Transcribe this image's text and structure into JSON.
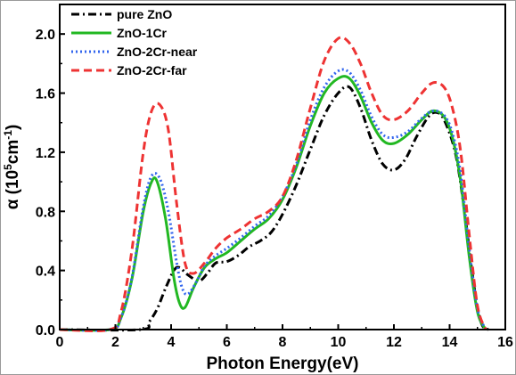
{
  "chart_data": {
    "type": "line",
    "xlabel": "Photon Energy(eV)",
    "ylabel": {
      "main": "α (10",
      "exp": "5",
      "unit": "cm",
      "unit_exp": "-1",
      "close": ")"
    },
    "xlim": [
      0,
      16
    ],
    "ylim": [
      0,
      2.2
    ],
    "x_ticks": [
      0,
      2,
      4,
      6,
      8,
      10,
      12,
      14,
      16
    ],
    "x_tick_labels": [
      "0",
      "2",
      "4",
      "6",
      "8",
      "10",
      "12",
      "14",
      "16"
    ],
    "y_ticks": [
      0.0,
      0.4,
      0.8,
      1.2,
      1.6,
      2.0
    ],
    "y_tick_labels": [
      "0.0",
      "0.4",
      "0.8",
      "1.2",
      "1.6",
      "2.0"
    ],
    "grid": false,
    "legend_position": "top-left",
    "series": [
      {
        "name": "pure ZnO",
        "color": "#000000",
        "dash": "dashdot",
        "x": [
          0,
          2.9,
          3.2,
          3.5,
          3.8,
          4.1,
          4.3,
          4.6,
          5.0,
          5.3,
          5.6,
          6.0,
          6.4,
          6.8,
          7.2,
          7.6,
          8.0,
          8.5,
          9.0,
          9.5,
          10.0,
          10.4,
          10.8,
          11.2,
          11.6,
          12.0,
          12.4,
          12.8,
          13.2,
          13.5,
          13.8,
          14.2,
          14.5,
          14.8,
          15.0,
          15.2,
          15.5
        ],
        "y": [
          0,
          0,
          0.05,
          0.14,
          0.28,
          0.4,
          0.42,
          0.37,
          0.33,
          0.38,
          0.45,
          0.46,
          0.5,
          0.56,
          0.6,
          0.66,
          0.78,
          0.98,
          1.22,
          1.45,
          1.6,
          1.64,
          1.5,
          1.28,
          1.12,
          1.08,
          1.15,
          1.3,
          1.43,
          1.47,
          1.42,
          1.2,
          0.85,
          0.4,
          0.15,
          0.02,
          0
        ]
      },
      {
        "name": "ZnO-1Cr",
        "color": "#22b822",
        "dash": "solid",
        "x": [
          0,
          1.8,
          2.2,
          2.6,
          3.0,
          3.3,
          3.5,
          3.8,
          4.1,
          4.3,
          4.5,
          4.8,
          5.2,
          5.6,
          6.0,
          6.5,
          7.0,
          7.5,
          8.0,
          8.5,
          9.0,
          9.5,
          10.0,
          10.4,
          10.8,
          11.2,
          11.6,
          12.0,
          12.5,
          13.0,
          13.4,
          13.8,
          14.1,
          14.4,
          14.7,
          15.0,
          15.3
        ],
        "y": [
          0,
          0,
          0.08,
          0.35,
          0.8,
          1.0,
          1.0,
          0.75,
          0.35,
          0.18,
          0.15,
          0.28,
          0.42,
          0.48,
          0.52,
          0.6,
          0.68,
          0.75,
          0.88,
          1.1,
          1.38,
          1.6,
          1.7,
          1.7,
          1.58,
          1.4,
          1.28,
          1.26,
          1.32,
          1.42,
          1.48,
          1.44,
          1.3,
          1.0,
          0.5,
          0.12,
          0
        ]
      },
      {
        "name": "ZnO-2Cr-near",
        "color": "#3366ee",
        "dash": "dotted",
        "x": [
          0,
          1.8,
          2.2,
          2.6,
          3.0,
          3.3,
          3.6,
          3.9,
          4.2,
          4.4,
          4.6,
          4.9,
          5.2,
          5.6,
          6.0,
          6.5,
          7.0,
          7.5,
          8.0,
          8.5,
          9.0,
          9.5,
          10.0,
          10.4,
          10.8,
          11.2,
          11.6,
          12.0,
          12.5,
          13.0,
          13.4,
          13.8,
          14.1,
          14.4,
          14.7,
          15.0,
          15.3
        ],
        "y": [
          0,
          0,
          0.08,
          0.36,
          0.83,
          1.04,
          1.02,
          0.8,
          0.45,
          0.28,
          0.24,
          0.32,
          0.43,
          0.5,
          0.55,
          0.62,
          0.7,
          0.77,
          0.9,
          1.12,
          1.42,
          1.64,
          1.75,
          1.74,
          1.62,
          1.44,
          1.32,
          1.3,
          1.34,
          1.43,
          1.48,
          1.45,
          1.33,
          1.05,
          0.55,
          0.14,
          0
        ]
      },
      {
        "name": "ZnO-2Cr-far",
        "color": "#ee3333",
        "dash": "dashed",
        "x": [
          0,
          1.8,
          2.2,
          2.6,
          3.0,
          3.3,
          3.6,
          3.9,
          4.2,
          4.5,
          4.8,
          5.2,
          5.6,
          6.0,
          6.5,
          7.0,
          7.5,
          8.0,
          8.5,
          9.0,
          9.5,
          10.0,
          10.4,
          10.8,
          11.2,
          11.6,
          12.0,
          12.5,
          13.0,
          13.4,
          13.8,
          14.1,
          14.4,
          14.7,
          15.0,
          15.3
        ],
        "y": [
          0,
          0,
          0.12,
          0.55,
          1.2,
          1.48,
          1.52,
          1.35,
          0.85,
          0.45,
          0.38,
          0.45,
          0.55,
          0.62,
          0.68,
          0.75,
          0.8,
          0.9,
          1.15,
          1.5,
          1.82,
          1.97,
          1.94,
          1.8,
          1.6,
          1.45,
          1.42,
          1.48,
          1.6,
          1.67,
          1.64,
          1.5,
          1.2,
          0.65,
          0.16,
          0
        ]
      }
    ]
  }
}
